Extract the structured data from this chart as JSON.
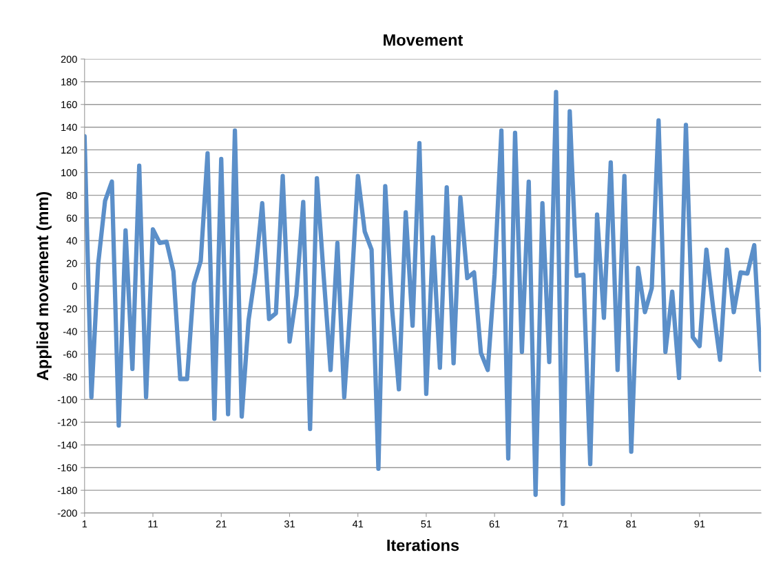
{
  "chart_data": {
    "type": "line",
    "title": "Movement",
    "xlabel": "Iterations",
    "ylabel": "Applied movement (mm)",
    "categories": [
      "1",
      null,
      null,
      null,
      null,
      null,
      null,
      null,
      null,
      null,
      "11",
      null,
      null,
      null,
      null,
      null,
      null,
      null,
      null,
      null,
      "21",
      null,
      null,
      null,
      null,
      null,
      null,
      null,
      null,
      null,
      "31",
      null,
      null,
      null,
      null,
      null,
      null,
      null,
      null,
      null,
      "41",
      null,
      null,
      null,
      null,
      null,
      null,
      null,
      null,
      null,
      "51",
      null,
      null,
      null,
      null,
      null,
      null,
      null,
      null,
      null,
      "61",
      null,
      null,
      null,
      null,
      null,
      null,
      null,
      null,
      null,
      "71",
      null,
      null,
      null,
      null,
      null,
      null,
      null,
      null,
      null,
      "81",
      null,
      null,
      null,
      null,
      null,
      null,
      null,
      null,
      null,
      "91",
      null,
      null,
      null,
      null,
      null,
      null,
      null,
      null,
      null
    ],
    "series": [
      {
        "color": "#5b8fc9",
        "values": [
          132,
          -98,
          20,
          75,
          92,
          -123,
          49,
          -73,
          106,
          -98,
          50,
          38,
          39,
          13,
          -82,
          -82,
          2,
          22,
          117,
          -117,
          112,
          -113,
          137,
          -115,
          -30,
          12,
          73,
          -29,
          -24,
          97,
          -49,
          -8,
          74,
          -126,
          95,
          8,
          -74,
          38,
          -98,
          -8,
          97,
          48,
          32,
          -161,
          88,
          -20,
          -91,
          65,
          -35,
          126,
          -95,
          43,
          -72,
          87,
          -68,
          78,
          7,
          12,
          -59,
          -74,
          10,
          137,
          -152,
          135,
          -58,
          92,
          -184,
          73,
          -67,
          171,
          -192,
          154,
          9,
          10,
          -157,
          63,
          -28,
          109,
          -74,
          97,
          -146,
          16,
          -23,
          -2,
          146,
          -58,
          -5,
          -81,
          142,
          -45,
          -53,
          32,
          -20,
          -65,
          32,
          -23,
          12,
          11,
          36,
          -74
        ]
      }
    ],
    "ylim": [
      -200,
      200
    ],
    "yticks": [
      -200,
      -180,
      -160,
      -140,
      -120,
      -100,
      -80,
      -60,
      -40,
      -20,
      0,
      20,
      40,
      60,
      80,
      100,
      120,
      140,
      160,
      180,
      200
    ],
    "grid": "y",
    "marker": "none",
    "line_style": "solid"
  }
}
